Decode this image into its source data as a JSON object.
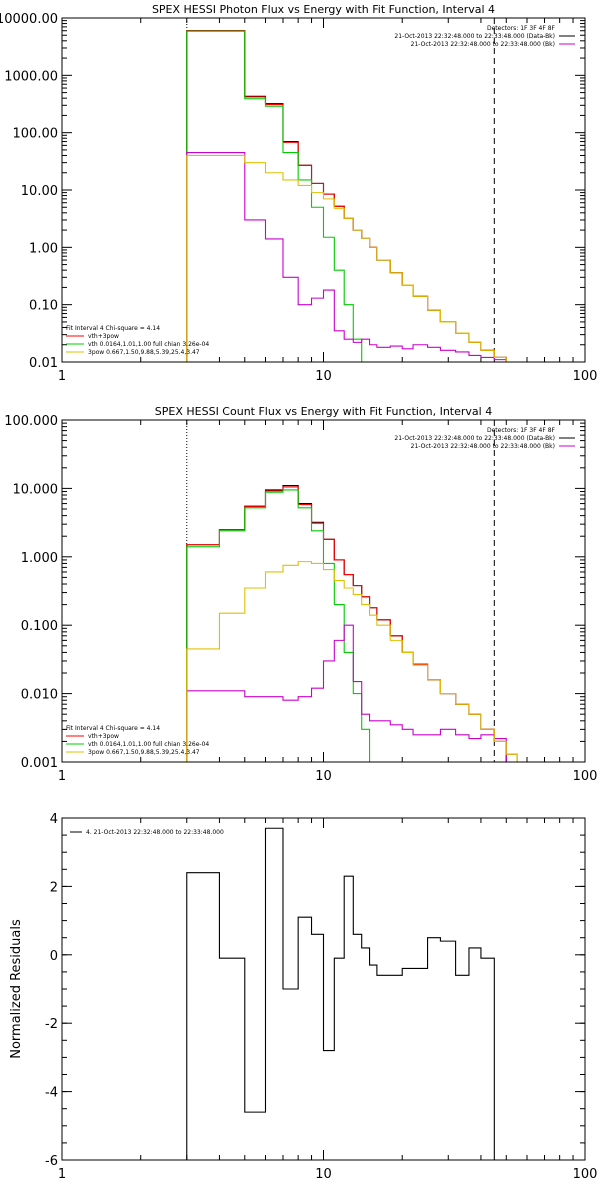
{
  "chart_data": [
    {
      "type": "line",
      "title": "SPEX HESSI Photon Flux vs Energy with Fit Function, Interval 4",
      "xscale": "log",
      "yscale": "log",
      "xlim": [
        1,
        100
      ],
      "ylim": [
        0.01,
        10000
      ],
      "xticks": [
        "1",
        "10",
        "100"
      ],
      "yticks": [
        "10000.00",
        "1000.00",
        "100.00",
        "10.00",
        "1.00",
        "0.10",
        "0.01"
      ],
      "legend_top": [
        "Detectors: 1F 3F 4F 8F",
        "21-Oct-2013 22:32:48.000 to 22:33:48.000 (Data-Bk)",
        "21-Oct-2013 22:32:48.000 to 22:33:48.000 (Bk)"
      ],
      "legend_bottom": [
        "Fit Interval 4   Chi-square = 4.14",
        "vth+3pow",
        "vth 0.0164,1.01,1.00  full chian 3.26e-04",
        "3pow 0.667,1.50,9.88,5.39,25.4,3.47"
      ],
      "colors": {
        "data": "#000000",
        "vth3pow": "#ff0000",
        "vth": "#00cc00",
        "bk": "#cc00cc",
        "pow": "#e0c000"
      },
      "x_edges": [
        3,
        4,
        5,
        6,
        7,
        8,
        9,
        10,
        11,
        12,
        13,
        14,
        15,
        16,
        18,
        20,
        22,
        25,
        28,
        32,
        36,
        40,
        45,
        50
      ],
      "series": [
        {
          "values": [
            6000,
            6000,
            430,
            320,
            70,
            27,
            13,
            8.5,
            5.2,
            3.2,
            2.0,
            1.45,
            1.0,
            0.6,
            0.36,
            0.22,
            0.14,
            0.08,
            0.05,
            0.032,
            0.022,
            0.016,
            0.012
          ]
        },
        {
          "values": [
            6000,
            6000,
            420,
            310,
            68,
            27,
            13,
            8.5,
            5.2,
            3.2,
            2.0,
            1.45,
            1.0,
            0.6,
            0.36,
            0.22,
            0.14,
            0.08,
            0.05,
            0.032,
            0.022,
            0.016,
            0.012,
            0.009
          ]
        },
        {
          "values": [
            5900,
            5900,
            390,
            290,
            45,
            15,
            5,
            1.5,
            0.4,
            0.1,
            0.025,
            0.008,
            0.002
          ]
        },
        {
          "values": [
            45,
            45,
            3,
            1.4,
            0.3,
            0.1,
            0.13,
            0.18,
            0.035,
            0.025,
            0.022,
            0.025,
            0.02,
            0.018,
            0.019,
            0.017,
            0.02,
            0.018,
            0.016,
            0.015,
            0.013,
            0.012,
            0.011
          ]
        },
        {
          "values": [
            40,
            40,
            30,
            20,
            15,
            12,
            9,
            7,
            4.8,
            3.2,
            2.0,
            1.45,
            1.0,
            0.6,
            0.36,
            0.22,
            0.14,
            0.08,
            0.05,
            0.032,
            0.022,
            0.016,
            0.012,
            0.009
          ]
        }
      ],
      "vlines": [
        3,
        45
      ]
    },
    {
      "type": "line",
      "title": "SPEX HESSI Count Flux vs Energy with Fit Function, Interval 4",
      "xscale": "log",
      "yscale": "log",
      "xlim": [
        1,
        100
      ],
      "ylim": [
        0.001,
        100
      ],
      "xticks": [
        "1",
        "10",
        "100"
      ],
      "yticks": [
        "100.000",
        "10.000",
        "1.000",
        "0.100",
        "0.010",
        "0.001"
      ],
      "legend_top": [
        "Detectors: 1F 3F 4F 8F",
        "21-Oct-2013 22:32:48.000 to 22:33:48.000 (Data-Bk)",
        "21-Oct-2013 22:32:48.000 to 22:33:48.000 (Bk)"
      ],
      "legend_bottom": [
        "Fit Interval 4   Chi-square = 4.14",
        "vth+3pow",
        "vth 0.0164,1.01,1.00  full chian 3.26e-04",
        "3pow 0.667,1.50,9.88,5.39,25.4,3.47"
      ],
      "x_edges": [
        3,
        4,
        5,
        6,
        7,
        8,
        9,
        10,
        11,
        12,
        13,
        14,
        15,
        16,
        18,
        20,
        22,
        25,
        28,
        32,
        36,
        40,
        45,
        50,
        55,
        60,
        65
      ],
      "series": [
        {
          "values": [
            1.5,
            2.5,
            5.5,
            9.5,
            11,
            6,
            3.2,
            1.8,
            0.9,
            0.55,
            0.38,
            0.26,
            0.18,
            0.12,
            0.07,
            0.04,
            0.027,
            0.016,
            0.01,
            0.007,
            0.005,
            0.003,
            0.002
          ]
        },
        {
          "values": [
            1.5,
            2.5,
            5.4,
            9.2,
            10.5,
            5.8,
            3.1,
            1.8,
            0.9,
            0.55,
            0.38,
            0.26,
            0.18,
            0.12,
            0.07,
            0.04,
            0.027,
            0.016,
            0.01,
            0.007,
            0.005,
            0.003,
            0.002,
            0.0013
          ]
        },
        {
          "values": [
            1.4,
            2.4,
            5.2,
            8.8,
            9.5,
            5.2,
            2.4,
            0.8,
            0.2,
            0.04,
            0.01,
            0.003,
            0.0008
          ]
        },
        {
          "values": [
            0.011,
            0.011,
            0.009,
            0.009,
            0.008,
            0.009,
            0.012,
            0.03,
            0.06,
            0.1,
            0.015,
            0.005,
            0.004,
            0.004,
            0.0035,
            0.003,
            0.0025,
            0.0025,
            0.003,
            0.0025,
            0.0022,
            0.0025,
            0.0022
          ]
        },
        {
          "values": [
            0.045,
            0.15,
            0.35,
            0.6,
            0.75,
            0.85,
            0.8,
            0.65,
            0.45,
            0.35,
            0.28,
            0.2,
            0.14,
            0.1,
            0.06,
            0.04,
            0.026,
            0.016,
            0.01,
            0.007,
            0.005,
            0.003,
            0.002,
            0.0013,
            0.0009,
            0.0006
          ]
        }
      ],
      "vlines": [
        3,
        45
      ]
    },
    {
      "type": "line",
      "title": "",
      "xscale": "log",
      "yscale": "linear",
      "xlim": [
        1,
        100
      ],
      "ylim": [
        -6,
        4
      ],
      "xticks": [
        "1",
        "10",
        "100"
      ],
      "yticks": [
        "4",
        "2",
        "0",
        "-2",
        "-4",
        "-6"
      ],
      "ylabel": "Normalized Residuals",
      "legend_top": [
        "4. 21-Oct-2013 22:32:48.000 to 22:33:48.000"
      ],
      "x_edges": [
        3,
        4,
        5,
        6,
        7,
        8,
        9,
        10,
        11,
        12,
        13,
        14,
        15,
        16,
        18,
        20,
        22,
        25,
        28,
        32,
        36,
        40,
        45
      ],
      "series": [
        {
          "values": [
            2.4,
            -0.1,
            -4.6,
            3.7,
            -1.0,
            1.1,
            0.6,
            -2.8,
            -0.1,
            2.3,
            0.6,
            0.2,
            -0.3,
            -0.6,
            -0.6,
            -0.4,
            -0.4,
            0.5,
            0.4,
            -0.6,
            0.2,
            -0.1
          ]
        }
      ]
    }
  ]
}
